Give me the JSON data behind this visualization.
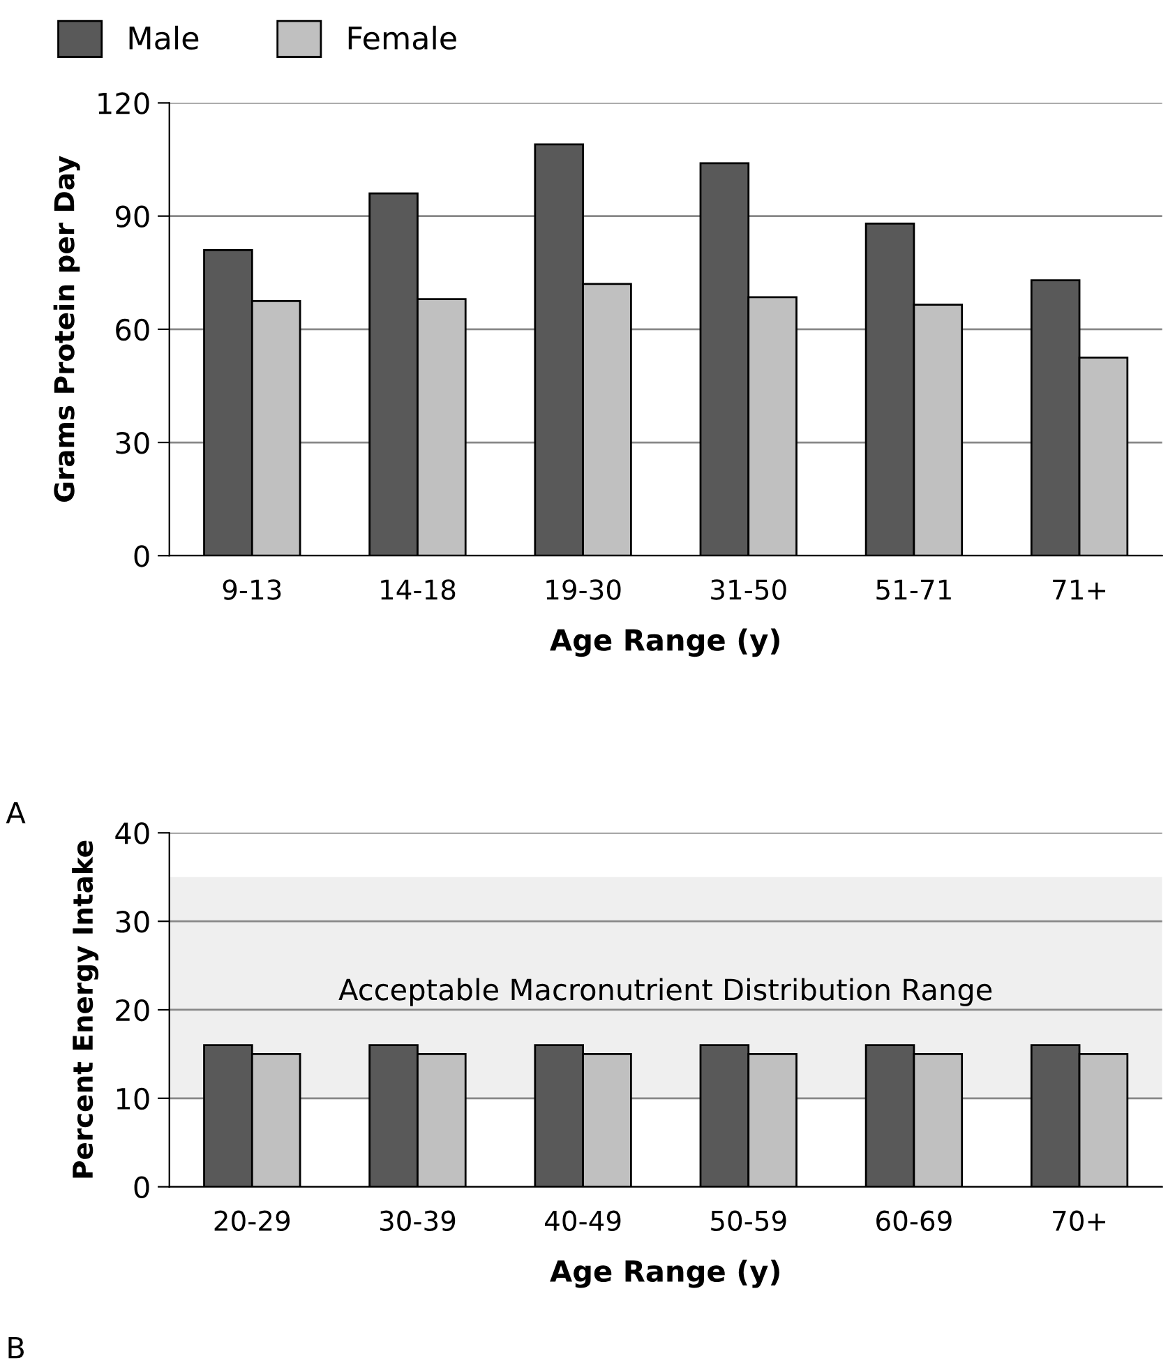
{
  "chart_data": [
    {
      "type": "bar",
      "xlabel": "Age Range (y)",
      "ylabel": "Grams Protein per Day",
      "categories": [
        "9-13",
        "14-18",
        "19-30",
        "31-50",
        "51-71",
        "71+"
      ],
      "series": [
        {
          "name": "Male",
          "color": "#595959",
          "values": [
            81,
            96,
            109,
            104,
            88,
            73
          ]
        },
        {
          "name": "Female",
          "color": "#c0c0c0",
          "values": [
            67.5,
            68,
            72,
            68.5,
            66.5,
            52.5
          ]
        }
      ],
      "ylim": [
        0,
        120
      ],
      "yticks": [
        0,
        30,
        60,
        90,
        120
      ],
      "grid": "y",
      "legend": "top left",
      "annotations": [
        "A"
      ]
    },
    {
      "type": "bar",
      "xlabel": "Age Range (y)",
      "ylabel": "Percent Energy Intake",
      "categories": [
        "20-29",
        "30-39",
        "40-49",
        "50-59",
        "60-69",
        "70+"
      ],
      "series": [
        {
          "color": "#595959",
          "values": [
            16,
            16,
            16,
            16,
            16,
            16
          ]
        },
        {
          "color": "#c0c0c0",
          "values": [
            15,
            15,
            15,
            15,
            15,
            15
          ]
        }
      ],
      "ylim": [
        0,
        40
      ],
      "yticks": [
        0,
        10,
        20,
        30,
        40
      ],
      "grid": "y",
      "bands": [
        {
          "axis": "y",
          "from": 10,
          "to": 35,
          "label": "Acceptable Macronutrient Distribution Range",
          "color": "#efefef"
        }
      ],
      "annotations": [
        "B"
      ]
    }
  ]
}
